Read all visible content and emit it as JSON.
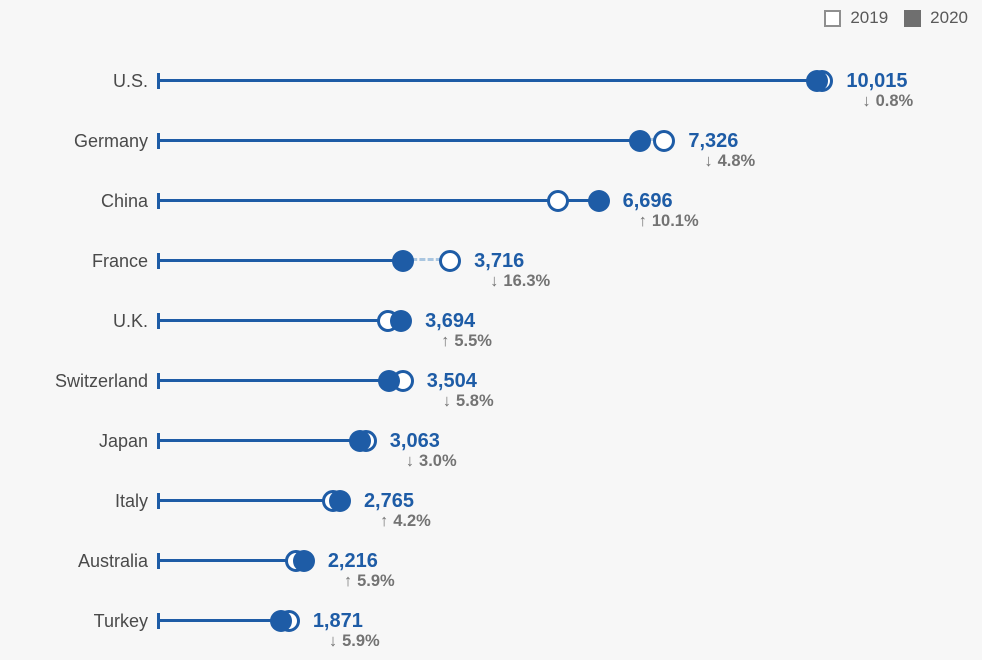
{
  "legend": {
    "items": [
      {
        "label": "2019",
        "style": "open"
      },
      {
        "label": "2020",
        "style": "filled"
      }
    ]
  },
  "colors": {
    "accent_blue": "#1e5ca6",
    "dashed_connector": "#aac6e0",
    "country_label_gray": "#4a4a4a",
    "percent_gray": "#737373",
    "legend_text": "#595959",
    "legend_filled_square": "#6f6f6f",
    "legend_open_border": "#8f8f8f",
    "background": "#f7f7f7"
  },
  "icons": {
    "up_arrow": "↑",
    "down_arrow": "↓"
  },
  "chart_data": {
    "type": "scatter",
    "subtype": "dot-plot-lollipop",
    "categories": [
      "U.S.",
      "Germany",
      "China",
      "France",
      "U.K.",
      "Switzerland",
      "Japan",
      "Italy",
      "Australia",
      "Turkey"
    ],
    "series": [
      {
        "name": "2019",
        "marker": "open-circle",
        "values": [
          10096,
          7695,
          6082,
          4440,
          3501,
          3720,
          3158,
          2654,
          2093,
          1988
        ]
      },
      {
        "name": "2020",
        "marker": "filled-circle",
        "values": [
          10015,
          7326,
          6696,
          3716,
          3694,
          3504,
          3063,
          2765,
          2216,
          1871
        ]
      }
    ],
    "value_labels": [
      "10,015",
      "7,326",
      "6,696",
      "3,716",
      "3,694",
      "3,504",
      "3,063",
      "2,765",
      "2,216",
      "1,871"
    ],
    "change_labels": [
      {
        "dir": "down",
        "text": "0.8%"
      },
      {
        "dir": "down",
        "text": "4.8%"
      },
      {
        "dir": "up",
        "text": "10.1%"
      },
      {
        "dir": "down",
        "text": "16.3%"
      },
      {
        "dir": "up",
        "text": "5.5%"
      },
      {
        "dir": "down",
        "text": "5.8%"
      },
      {
        "dir": "down",
        "text": "3.0%"
      },
      {
        "dir": "up",
        "text": "4.2%"
      },
      {
        "dir": "up",
        "text": "5.9%"
      },
      {
        "dir": "down",
        "text": "5.9%"
      }
    ],
    "title": "",
    "xlabel": "",
    "ylabel": "",
    "xlim": [
      0,
      10400
    ],
    "grid": false,
    "legend_position": "top-right"
  }
}
